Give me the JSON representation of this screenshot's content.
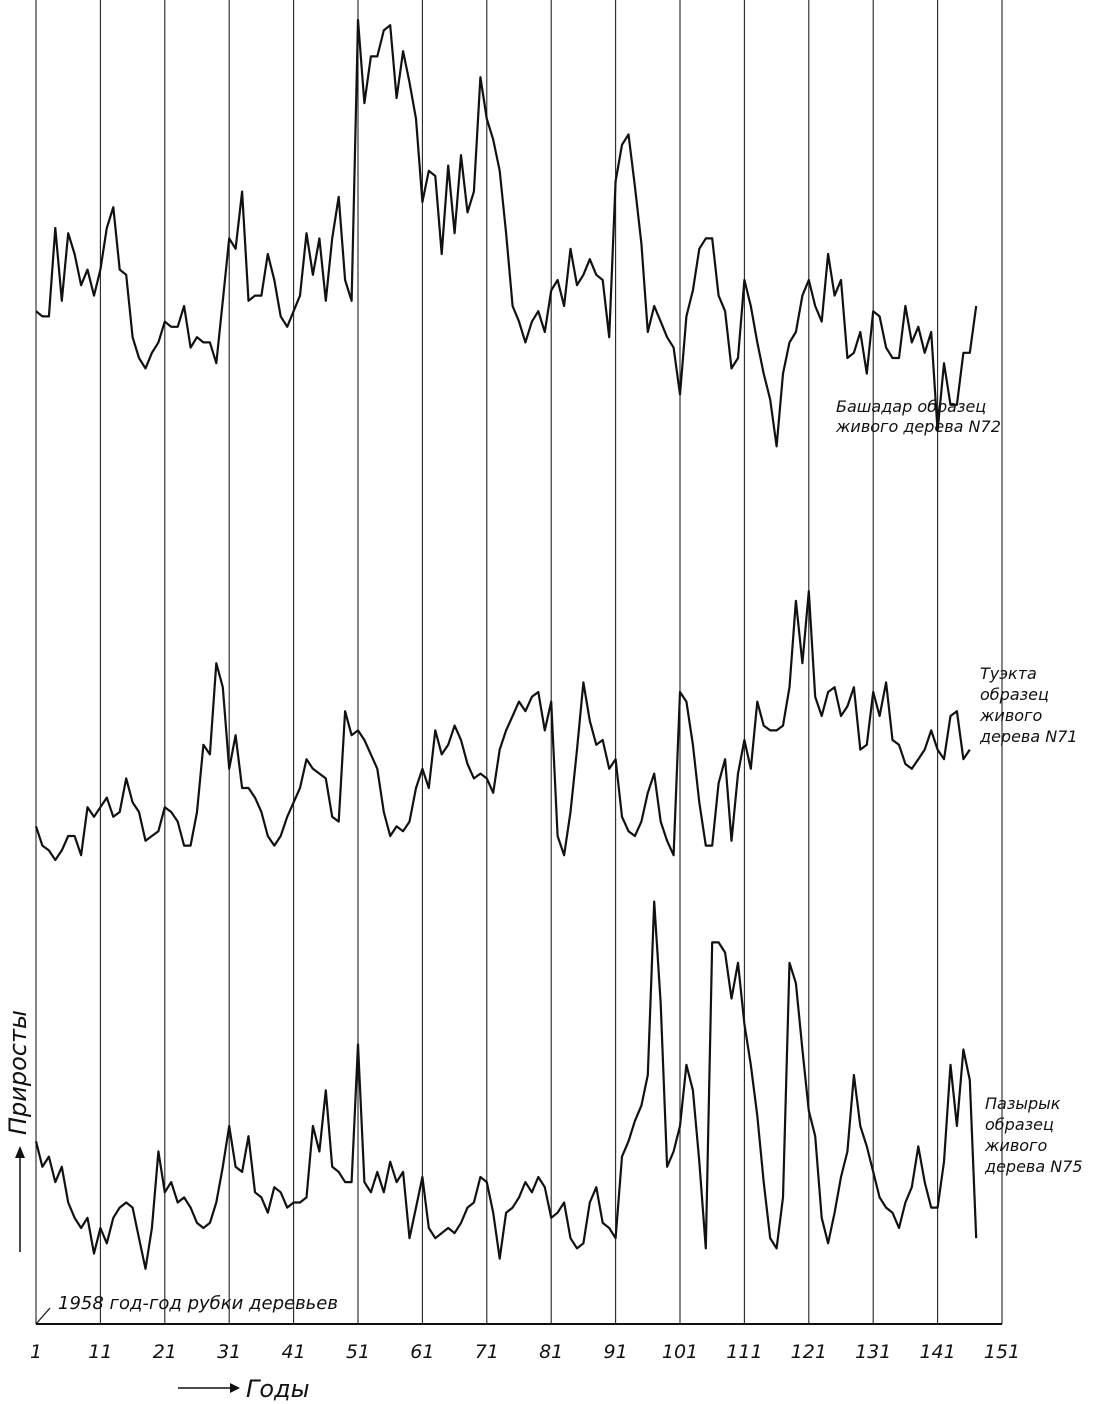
{
  "chart_data": {
    "type": "line",
    "title": "",
    "xlabel": "Годы",
    "ylabel": "Приросты",
    "xlim": [
      1,
      151
    ],
    "xticks": [
      "1",
      "11",
      "21",
      "31",
      "41",
      "51",
      "61",
      "71",
      "81",
      "91",
      "101",
      "111",
      "121",
      "131",
      "141",
      "151"
    ],
    "grid": true,
    "annotation": "1958 год-год рубки деревьев",
    "series": [
      {
        "name_lines": [
          "Башадар образец",
          "живого дерева N72"
        ],
        "x_start": 1,
        "values": [
          44,
          43,
          43,
          60,
          46,
          59,
          55,
          49,
          52,
          47,
          52,
          60,
          64,
          52,
          51,
          39,
          35,
          33,
          36,
          38,
          42,
          41,
          41,
          45,
          37,
          39,
          38,
          38,
          34,
          46,
          58,
          56,
          67,
          46,
          47,
          47,
          55,
          50,
          43,
          41,
          44,
          47,
          59,
          51,
          58,
          46,
          58,
          66,
          50,
          46,
          100,
          84,
          93,
          93,
          98,
          99,
          85,
          94,
          88,
          81,
          65,
          71,
          70,
          55,
          72,
          59,
          74,
          63,
          67,
          89,
          81,
          77,
          71,
          59,
          45,
          42,
          38,
          42,
          44,
          40,
          48,
          50,
          45,
          56,
          49,
          51,
          54,
          51,
          50,
          39,
          69,
          76,
          78,
          68,
          57,
          40,
          45,
          42,
          39,
          37,
          28,
          43,
          48,
          56,
          58,
          58,
          47,
          44,
          33,
          35,
          50,
          45,
          38,
          32,
          27,
          18,
          32,
          38,
          40,
          47,
          50,
          45,
          42,
          55,
          47,
          50,
          35,
          36,
          40,
          32,
          44,
          43,
          37,
          35,
          35,
          45,
          38,
          41,
          36,
          40,
          21,
          34,
          26,
          26,
          36,
          36,
          45
        ]
      },
      {
        "name_lines": [
          "Туэкта",
          "образец",
          "живого",
          "дерева N71"
        ],
        "x_start": 1,
        "values": [
          32,
          28,
          27,
          25,
          27,
          30,
          30,
          26,
          36,
          34,
          36,
          38,
          34,
          35,
          42,
          37,
          35,
          29,
          30,
          31,
          36,
          35,
          33,
          28,
          28,
          35,
          49,
          47,
          66,
          61,
          44,
          51,
          40,
          40,
          38,
          35,
          30,
          28,
          30,
          34,
          37,
          40,
          46,
          44,
          43,
          42,
          34,
          33,
          56,
          51,
          52,
          50,
          47,
          44,
          35,
          30,
          32,
          31,
          33,
          40,
          44,
          40,
          52,
          47,
          49,
          53,
          50,
          45,
          42,
          43,
          42,
          39,
          48,
          52,
          55,
          58,
          56,
          59,
          60,
          52,
          58,
          30,
          26,
          35,
          48,
          62,
          54,
          49,
          50,
          44,
          46,
          34,
          31,
          30,
          33,
          39,
          43,
          33,
          29,
          26,
          60,
          58,
          49,
          37,
          28,
          28,
          41,
          46,
          29,
          43,
          50,
          44,
          58,
          53,
          52,
          52,
          53,
          61,
          79,
          66,
          81,
          59,
          55,
          60,
          61,
          55,
          57,
          61,
          48,
          49,
          60,
          55,
          62,
          50,
          49,
          45,
          44,
          46,
          48,
          52,
          48,
          46,
          55,
          56,
          46,
          48
        ]
      },
      {
        "name_lines": [
          "Пазырык",
          "образец",
          "живого",
          "дерева N75"
        ],
        "x_start": 1,
        "values": [
          37,
          32,
          34,
          29,
          32,
          25,
          22,
          20,
          22,
          15,
          20,
          17,
          22,
          24,
          25,
          24,
          18,
          12,
          20,
          35,
          27,
          29,
          25,
          26,
          24,
          21,
          20,
          21,
          25,
          32,
          40,
          32,
          31,
          38,
          27,
          26,
          23,
          28,
          27,
          24,
          25,
          25,
          26,
          40,
          35,
          47,
          32,
          31,
          29,
          29,
          56,
          29,
          27,
          31,
          27,
          33,
          29,
          31,
          18,
          24,
          30,
          20,
          18,
          19,
          20,
          19,
          21,
          24,
          25,
          30,
          29,
          23,
          14,
          23,
          24,
          26,
          29,
          27,
          30,
          28,
          22,
          23,
          25,
          18,
          16,
          17,
          25,
          28,
          21,
          20,
          18,
          34,
          37,
          41,
          44,
          50,
          84,
          64,
          32,
          35,
          40,
          52,
          47,
          33,
          16,
          76,
          76,
          74,
          65,
          72,
          60,
          52,
          42,
          29,
          18,
          16,
          26,
          72,
          68,
          55,
          43,
          38,
          22,
          17,
          23,
          30,
          35,
          50,
          40,
          36,
          31,
          26,
          24,
          23,
          20,
          25,
          28,
          36,
          29,
          24,
          24,
          33,
          52,
          40,
          55,
          49,
          18
        ]
      }
    ]
  }
}
